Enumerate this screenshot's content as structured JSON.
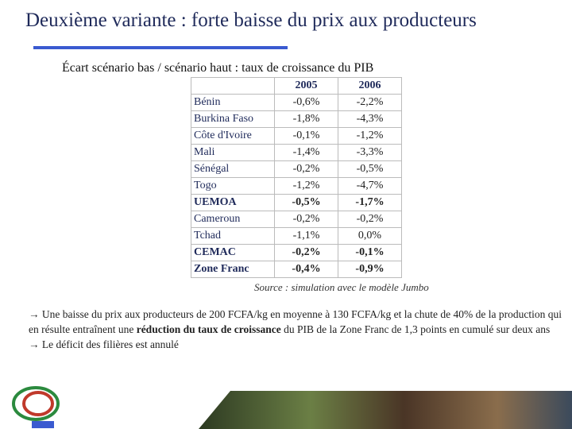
{
  "title": "Deuxième variante : forte baisse du prix aux producteurs",
  "subtitle": "Écart scénario bas / scénario haut : taux de croissance du PIB",
  "table": {
    "columns": [
      "2005",
      "2006"
    ],
    "rows": [
      {
        "label": "Bénin",
        "cells": [
          "-0,6%",
          "-2,2%"
        ],
        "bold": false
      },
      {
        "label": "Burkina Faso",
        "cells": [
          "-1,8%",
          "-4,3%"
        ],
        "bold": false
      },
      {
        "label": "Côte d'Ivoire",
        "cells": [
          "-0,1%",
          "-1,2%"
        ],
        "bold": false
      },
      {
        "label": "Mali",
        "cells": [
          "-1,4%",
          "-3,3%"
        ],
        "bold": false
      },
      {
        "label": "Sénégal",
        "cells": [
          "-0,2%",
          "-0,5%"
        ],
        "bold": false
      },
      {
        "label": "Togo",
        "cells": [
          "-1,2%",
          "-4,7%"
        ],
        "bold": false
      },
      {
        "label": "UEMOA",
        "cells": [
          "-0,5%",
          "-1,7%"
        ],
        "bold": true
      },
      {
        "label": "Cameroun",
        "cells": [
          "-0,2%",
          "-0,2%"
        ],
        "bold": false
      },
      {
        "label": "Tchad",
        "cells": [
          "-1,1%",
          "0,0%"
        ],
        "bold": false
      },
      {
        "label": "CEMAC",
        "cells": [
          "-0,2%",
          "-0,1%"
        ],
        "bold": true
      },
      {
        "label": "Zone Franc",
        "cells": [
          "-0,4%",
          "-0,9%"
        ],
        "bold": true
      }
    ]
  },
  "source": "Source : simulation avec le modèle Jumbo",
  "bullets": [
    {
      "parts": [
        {
          "text": "→ Une baisse du prix aux producteurs de 200 FCFA/kg en moyenne à 130 FCFA/kg et la chute de 40% de la production qui en résulte entraînent une ",
          "bold": false
        },
        {
          "text": "réduction du taux de croissance",
          "bold": true
        },
        {
          "text": " du PIB de la Zone Franc de 1,3 points en cumulé sur deux ans",
          "bold": false
        }
      ]
    },
    {
      "parts": [
        {
          "text": "→ Le déficit des filières est annulé",
          "bold": false
        }
      ]
    }
  ]
}
